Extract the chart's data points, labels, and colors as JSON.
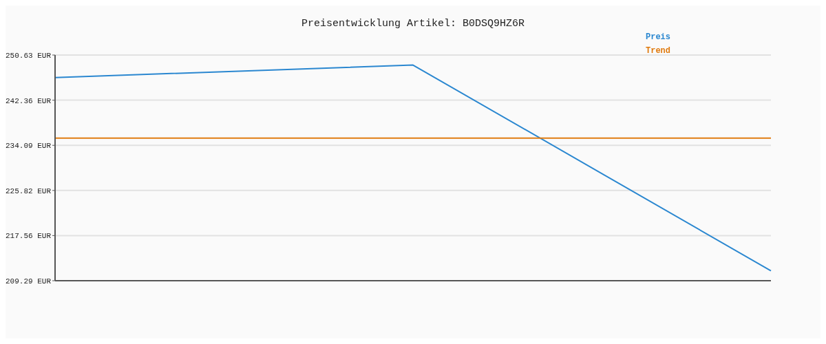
{
  "chart_data": {
    "type": "line",
    "title": "Preisentwicklung Artikel: B0DSQ9HZ6R",
    "categories": [
      null,
      null,
      null
    ],
    "series": [
      {
        "name": "Preis",
        "color": "#2a87d0",
        "values": [
          246.5,
          248.8,
          211.1
        ]
      },
      {
        "name": "Trend",
        "color": "#e07b10",
        "values": [
          235.4,
          235.4,
          235.4
        ]
      }
    ],
    "ylim": [
      209.29,
      250.63
    ],
    "yticks": [
      {
        "value": 209.29,
        "label": "209.29 EUR"
      },
      {
        "value": 217.56,
        "label": "217.56 EUR"
      },
      {
        "value": 225.82,
        "label": "225.82 EUR"
      },
      {
        "value": 234.09,
        "label": "234.09 EUR"
      },
      {
        "value": 242.36,
        "label": "242.36 EUR"
      },
      {
        "value": 250.63,
        "label": "250.63 EUR"
      }
    ],
    "grid": "y",
    "legend": "top right"
  }
}
